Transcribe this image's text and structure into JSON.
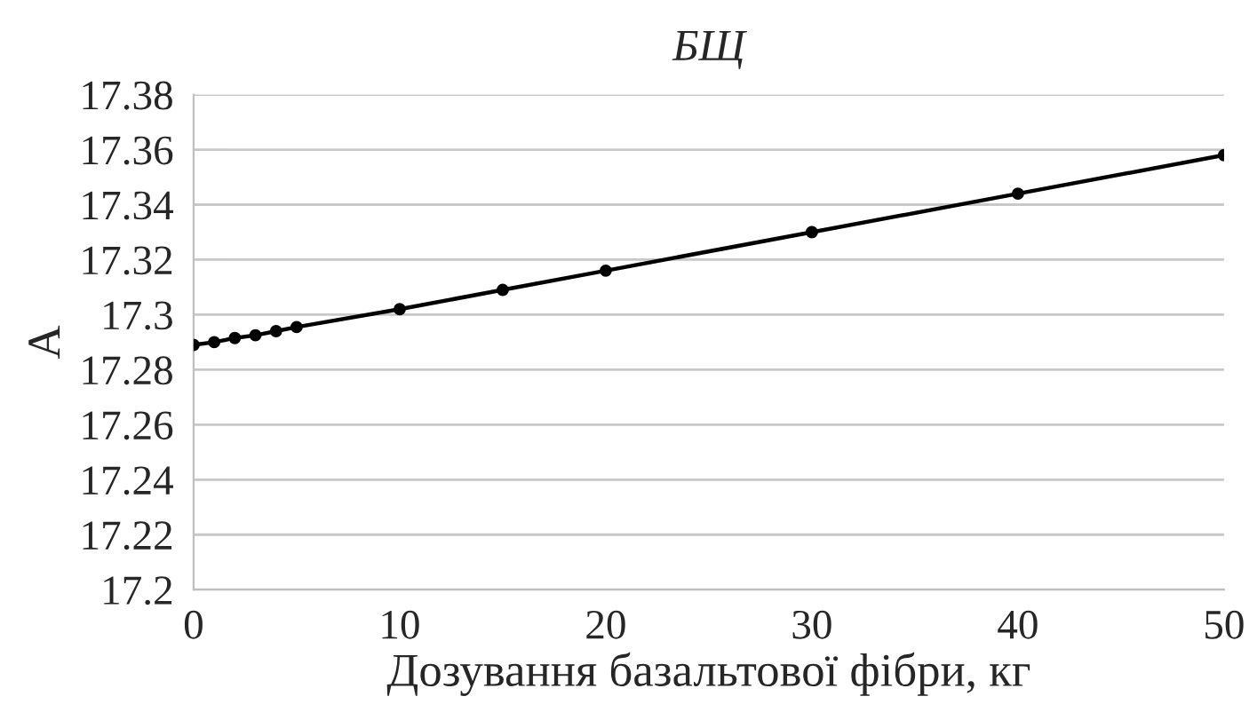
{
  "chart_data": {
    "type": "line",
    "title": "БЩ",
    "xlabel": "Дозування базальтової фібри, кг",
    "ylabel": "А",
    "x": [
      0,
      1,
      2,
      3,
      4,
      5,
      10,
      15,
      20,
      30,
      40,
      50
    ],
    "series": [
      {
        "color": "#000000",
        "values": [
          17.289,
          17.29,
          17.2915,
          17.2925,
          17.294,
          17.2955,
          17.302,
          17.309,
          17.316,
          17.33,
          17.344,
          17.358
        ]
      }
    ],
    "xlim": [
      0,
      50
    ],
    "xticks": [
      0,
      10,
      20,
      30,
      40,
      50
    ],
    "ylim": [
      17.2,
      17.38
    ],
    "yticks": [
      17.2,
      17.22,
      17.24,
      17.26,
      17.28,
      17.3,
      17.32,
      17.34,
      17.36,
      17.38
    ],
    "grid": "y",
    "marker": "circle",
    "line_style": "solid",
    "legend": false
  }
}
